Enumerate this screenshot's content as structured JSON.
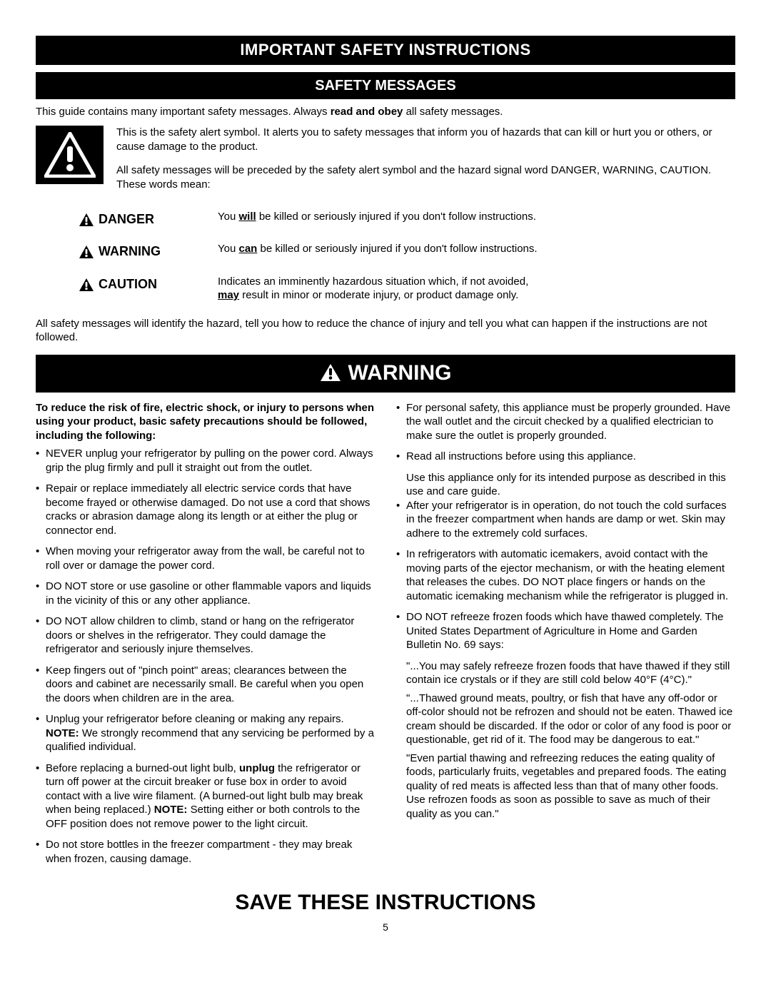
{
  "colors": {
    "background": "#ffffff",
    "text": "#000000",
    "bar_bg": "#000000",
    "bar_text": "#ffffff"
  },
  "typography": {
    "body_font": "Arial, Helvetica, sans-serif",
    "body_size_pt": 11,
    "title_size_pt": 17,
    "subtitle_size_pt": 16,
    "warning_bar_size_pt": 24,
    "save_title_size_pt": 24
  },
  "header": {
    "title": "IMPORTANT SAFETY INSTRUCTIONS",
    "subtitle": "SAFETY MESSAGES"
  },
  "intro": {
    "prefix": "This guide contains many important safety messages. Always ",
    "bold": "read and obey",
    "suffix": " all safety messages."
  },
  "alert_box": {
    "para1": "This is the safety alert symbol. It alerts you to safety messages that inform you of hazards that can kill or hurt you or others, or cause damage to the product.",
    "para2": "All safety messages will be preceded by the safety alert symbol and the hazard signal word DANGER, WARNING, CAUTION. These words mean:"
  },
  "signals": {
    "danger": {
      "label": "DANGER",
      "desc_pre": "You ",
      "desc_bold": "will",
      "desc_post": " be killed or seriously injured if you don't follow instructions."
    },
    "warning": {
      "label": "WARNING",
      "desc_pre": "You ",
      "desc_bold": "can",
      "desc_post": " be killed or seriously injured if you don't follow instructions."
    },
    "caution": {
      "label": "CAUTION",
      "desc_line1": "Indicates an imminently hazardous situation which, if not avoided,",
      "desc_bold": "may",
      "desc_line2": " result in minor or moderate injury, or product damage only."
    }
  },
  "after_signals": "All safety messages will identify the hazard, tell you how to reduce the chance of injury and tell you what can happen if the instructions are not followed.",
  "warning_bar": "WARNING",
  "col_left": {
    "lead": "To reduce the risk of fire, electric shock, or injury to persons when using your product, basic safety precautions should be followed, including the following:",
    "items": [
      {
        "text": "NEVER unplug your refrigerator by pulling on the power cord. Always grip the plug firmly and pull it straight out from the outlet."
      },
      {
        "text": "Repair or replace immediately all electric service cords that have become frayed or otherwise damaged. Do not use a cord that shows cracks or abrasion damage along its length or at either the plug or connector end."
      },
      {
        "text": "When moving your refrigerator away from the wall, be careful not to roll over or damage the power cord."
      },
      {
        "text": "DO NOT store or use gasoline or other flammable vapors and liquids in the vicinity of this or any other appliance."
      },
      {
        "text": "DO NOT allow children to climb, stand or hang on the refrigerator doors or shelves in the refrigerator. They could damage the refrigerator and seriously injure themselves."
      },
      {
        "text": "Keep fingers out of \"pinch point\" areas; clearances between the doors and cabinet are necessarily small. Be careful when you open the doors when children are in the area."
      },
      {
        "html": "Unplug your refrigerator before cleaning or making any repairs. <span class=\"b\">NOTE:</span> We strongly recommend that any servicing be performed by a qualified individual."
      },
      {
        "html": "Before replacing a burned-out light bulb, <span class=\"b\">unplug</span> the refrigerator or turn off power at the circuit breaker or fuse box in order to avoid contact with a live wire filament. (A burned-out light bulb may break when being replaced.) <span class=\"b\">NOTE:</span> Setting either or both controls to the OFF position does not remove power to the light circuit."
      },
      {
        "text": "Do not store bottles in the freezer compartment - they may break when frozen, causing damage."
      }
    ]
  },
  "col_right": {
    "items": [
      {
        "text": "For personal safety, this appliance must be properly grounded. Have the wall outlet and the circuit checked by a qualified electrician to make sure the outlet is properly grounded."
      },
      {
        "text": "Read all instructions before using this appliance.",
        "sub": [
          "Use this appliance only for its intended purpose as described in this use and care guide."
        ]
      },
      {
        "text": "After your refrigerator is in operation, do not touch the cold surfaces in the freezer compartment when hands are damp or wet. Skin may adhere to the extremely cold surfaces."
      },
      {
        "text": "In refrigerators with automatic icemakers, avoid contact with the moving parts of the ejector mechanism, or with the heating element that releases the cubes. DO NOT place fingers or hands on the automatic icemaking mechanism while the refrigerator is plugged in."
      },
      {
        "text": "DO NOT refreeze frozen foods which have thawed completely. The United States Department of Agriculture in Home and Garden Bulletin No. 69 says:",
        "sub": [
          "\"...You may safely refreeze frozen foods that have thawed if they still contain ice crystals or if they are still cold below 40°F (4°C).\"",
          "\"...Thawed ground meats, poultry, or fish that have any off-odor or off-color should not be refrozen and should not be eaten. Thawed ice cream should be discarded. If the odor or color of any food is poor or questionable, get rid of it. The food may be dangerous to eat.\"",
          "\"Even partial thawing and refreezing reduces the eating quality of foods, particularly fruits, vegetables and prepared foods. The eating quality of red meats is affected less than that of many other foods. Use refrozen foods as soon as possible to save as much of their quality as you can.\""
        ]
      }
    ]
  },
  "save_title": "SAVE THESE INSTRUCTIONS",
  "page_number": "5"
}
